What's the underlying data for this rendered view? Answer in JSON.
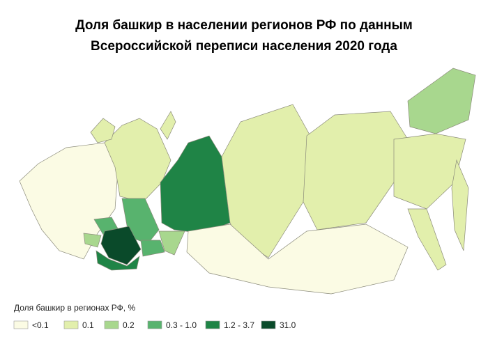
{
  "header": {
    "title_line1": "Доля башкир в населении регионов РФ по данным",
    "title_line2": "Всероссийской переписи населения 2020 года"
  },
  "legend": {
    "title": "Доля башкир в регионах РФ, %",
    "items": [
      {
        "label": "<0.1",
        "color": "#fbfbe4"
      },
      {
        "label": "0.1",
        "color": "#e2efac"
      },
      {
        "label": "0.2",
        "color": "#a8d78e"
      },
      {
        "label": "0.3 - 1.0",
        "color": "#58b36e"
      },
      {
        "label": "1.2 - 3.7",
        "color": "#1f8446"
      },
      {
        "label": "31.0",
        "color": "#0a4a2a"
      }
    ]
  }
}
